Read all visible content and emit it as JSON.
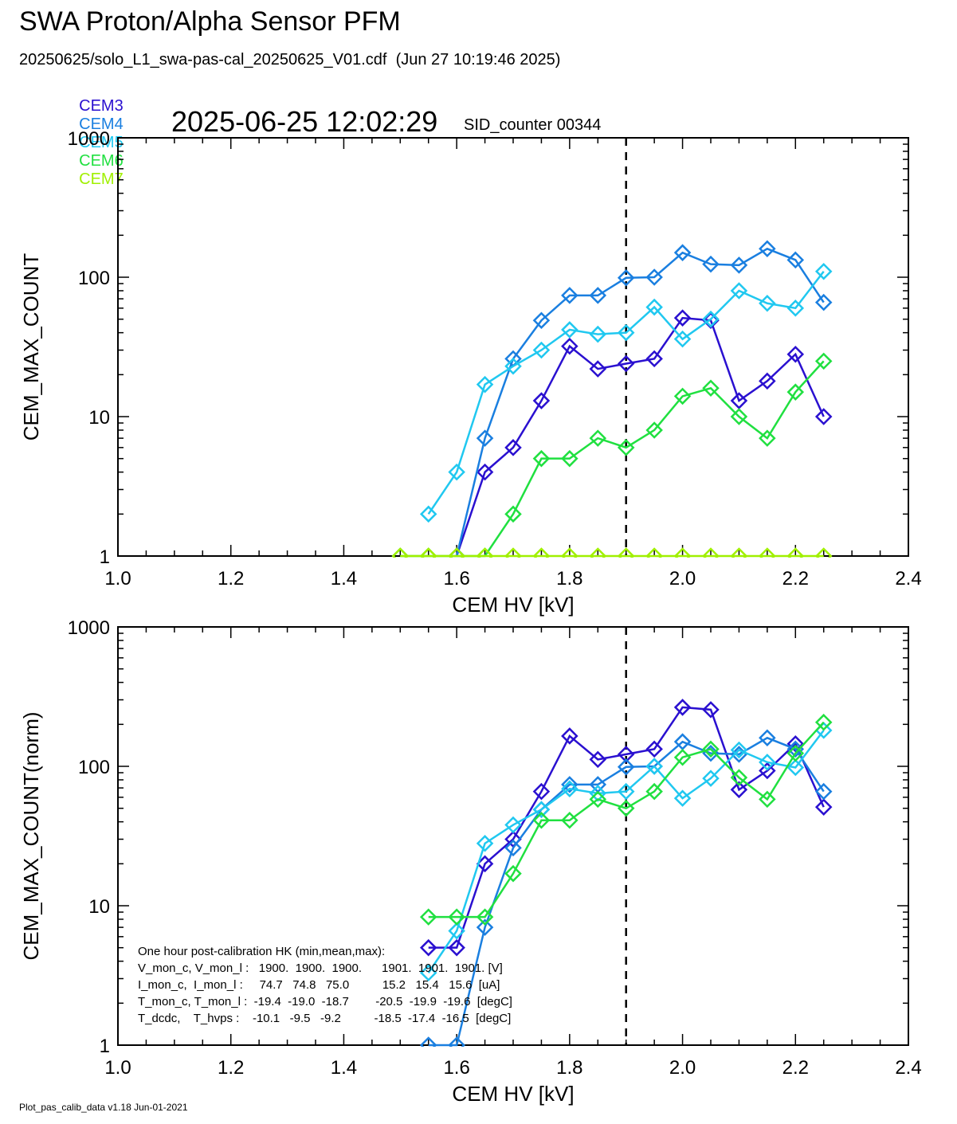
{
  "header": {
    "title": "SWA Proton/Alpha Sensor PFM",
    "subtitle": "20250625/solo_L1_swa-pas-cal_20250625_V01.cdf  (Jun 27 10:19:46 2025)",
    "timestamp": "2025-06-25 12:02:29",
    "sid_counter": "SID_counter 00344"
  },
  "legend": [
    {
      "name": "CEM3",
      "color": "#2a10d0"
    },
    {
      "name": "CEM4",
      "color": "#1a7fe0"
    },
    {
      "name": "CEM5",
      "color": "#20c8f0"
    },
    {
      "name": "CEM6",
      "color": "#20e040"
    },
    {
      "name": "CEM7",
      "color": "#a0f000"
    }
  ],
  "footer": "Plot_pas_calib_data v1.18 Jun-01-2021",
  "chart_data": [
    {
      "type": "line",
      "xlabel": "CEM HV [kV]",
      "ylabel": "CEM_MAX_COUNT",
      "xlim": [
        1.0,
        2.4
      ],
      "ylim": [
        1,
        1000
      ],
      "yscale": "log",
      "xticks": [
        "1.0",
        "1.2",
        "1.4",
        "1.6",
        "1.8",
        "2.0",
        "2.2",
        "2.4"
      ],
      "yticks": [
        "1",
        "10",
        "100",
        "1000"
      ],
      "reference_line_x": 1.9,
      "x": [
        1.5,
        1.55,
        1.6,
        1.65,
        1.7,
        1.75,
        1.8,
        1.85,
        1.9,
        1.95,
        2.0,
        2.05,
        2.1,
        2.15,
        2.2,
        2.25
      ],
      "series": [
        {
          "name": "CEM3",
          "values": [
            null,
            null,
            1,
            4,
            6,
            13,
            32,
            22,
            24,
            26,
            51,
            49,
            13,
            18,
            28,
            10
          ]
        },
        {
          "name": "CEM4",
          "values": [
            null,
            null,
            1,
            7,
            26,
            49,
            74,
            74,
            99,
            100,
            150,
            124,
            122,
            160,
            133,
            66
          ]
        },
        {
          "name": "CEM5",
          "values": [
            null,
            2,
            4,
            17,
            23,
            30,
            42,
            39,
            40,
            61,
            36,
            50,
            80,
            65,
            60,
            110
          ]
        },
        {
          "name": "CEM6",
          "values": [
            1,
            1,
            1,
            1,
            2,
            5,
            5,
            7,
            6,
            8,
            14,
            16,
            10,
            7,
            15,
            25
          ]
        },
        {
          "name": "CEM7",
          "values": [
            1,
            1,
            1,
            1,
            1,
            1,
            1,
            1,
            1,
            1,
            1,
            1,
            1,
            1,
            1,
            1
          ]
        }
      ]
    },
    {
      "type": "line",
      "xlabel": "CEM HV [kV]",
      "ylabel": "CEM_MAX_COUNT(norm)",
      "xlim": [
        1.0,
        2.4
      ],
      "ylim": [
        1,
        1000
      ],
      "yscale": "log",
      "xticks": [
        "1.0",
        "1.2",
        "1.4",
        "1.6",
        "1.8",
        "2.0",
        "2.2",
        "2.4"
      ],
      "yticks": [
        "1",
        "10",
        "100",
        "1000"
      ],
      "reference_line_x": 1.9,
      "x": [
        1.55,
        1.6,
        1.65,
        1.7,
        1.75,
        1.8,
        1.85,
        1.9,
        1.95,
        2.0,
        2.05,
        2.1,
        2.15,
        2.2,
        2.25
      ],
      "series": [
        {
          "name": "CEM3",
          "values": [
            5,
            5,
            20,
            30,
            66,
            165,
            112,
            122,
            133,
            265,
            255,
            68,
            93,
            145,
            51
          ]
        },
        {
          "name": "CEM4",
          "values": [
            1,
            1,
            7,
            26,
            49,
            74,
            74,
            99,
            100,
            150,
            124,
            122,
            160,
            133,
            66
          ]
        },
        {
          "name": "CEM5",
          "values": [
            3.3,
            6.6,
            28,
            38,
            49,
            69,
            64,
            66,
            100,
            59,
            82,
            131,
            107,
            98,
            181
          ]
        },
        {
          "name": "CEM6",
          "values": [
            8.3,
            8.3,
            8.3,
            17,
            41,
            41,
            58,
            50,
            66,
            116,
            133,
            83,
            58,
            124,
            207
          ]
        }
      ],
      "annotations": [
        "One hour post-calibration HK (min,mean,max):",
        "V_mon_c, V_mon_l :   1900.  1900.  1900.      1901.  1901.  1901. [V]",
        "I_mon_c,  I_mon_l :     74.7   74.8   75.0          15.2   15.4   15.6  [uA]",
        "T_mon_c, T_mon_l :  -19.4  -19.0  -18.7        -20.5  -19.9  -19.6  [degC]",
        "T_dcdc,    T_hvps :    -10.1   -9.5   -9.2          -18.5  -17.4  -16.5  [degC]"
      ]
    }
  ]
}
